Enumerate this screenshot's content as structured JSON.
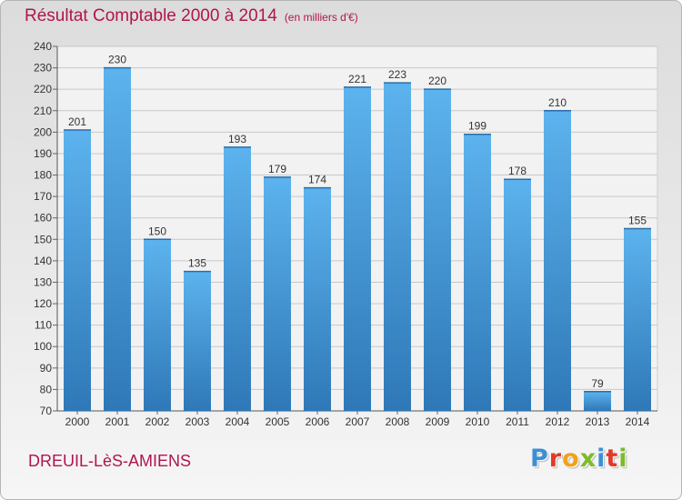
{
  "header": {
    "title": "Résultat Comptable 2000 à 2014",
    "subtitle": "(en milliers d'€)"
  },
  "footer": {
    "commune": "DREUIL-LèS-AMIENS",
    "logo_letters": [
      "P",
      "r",
      "o",
      "x",
      "i",
      "t",
      "i"
    ]
  },
  "colors": {
    "title": "#b0154f",
    "bar_top": "#5cb3ee",
    "bar_bottom": "#2f78b8",
    "logo": [
      "#3d8fd4",
      "#e23a28",
      "#f0a21d",
      "#7dbb2a",
      "#3d8fd4",
      "#e23a28",
      "#7dbb2a"
    ]
  },
  "chart_data": {
    "type": "bar",
    "title": "Résultat Comptable 2000 à 2014",
    "subtitle": "(en milliers d'€)",
    "xlabel": "",
    "ylabel": "",
    "categories": [
      "2000",
      "2001",
      "2002",
      "2003",
      "2004",
      "2005",
      "2006",
      "2007",
      "2008",
      "2009",
      "2010",
      "2011",
      "2012",
      "2013",
      "2014"
    ],
    "values": [
      201,
      230,
      150,
      135,
      193,
      179,
      174,
      221,
      223,
      220,
      199,
      178,
      210,
      79,
      155
    ],
    "ylim": [
      70,
      240
    ],
    "yticks": [
      70,
      80,
      90,
      100,
      110,
      120,
      130,
      140,
      150,
      160,
      170,
      180,
      190,
      200,
      210,
      220,
      230,
      240
    ],
    "grid": true,
    "legend": "none"
  }
}
